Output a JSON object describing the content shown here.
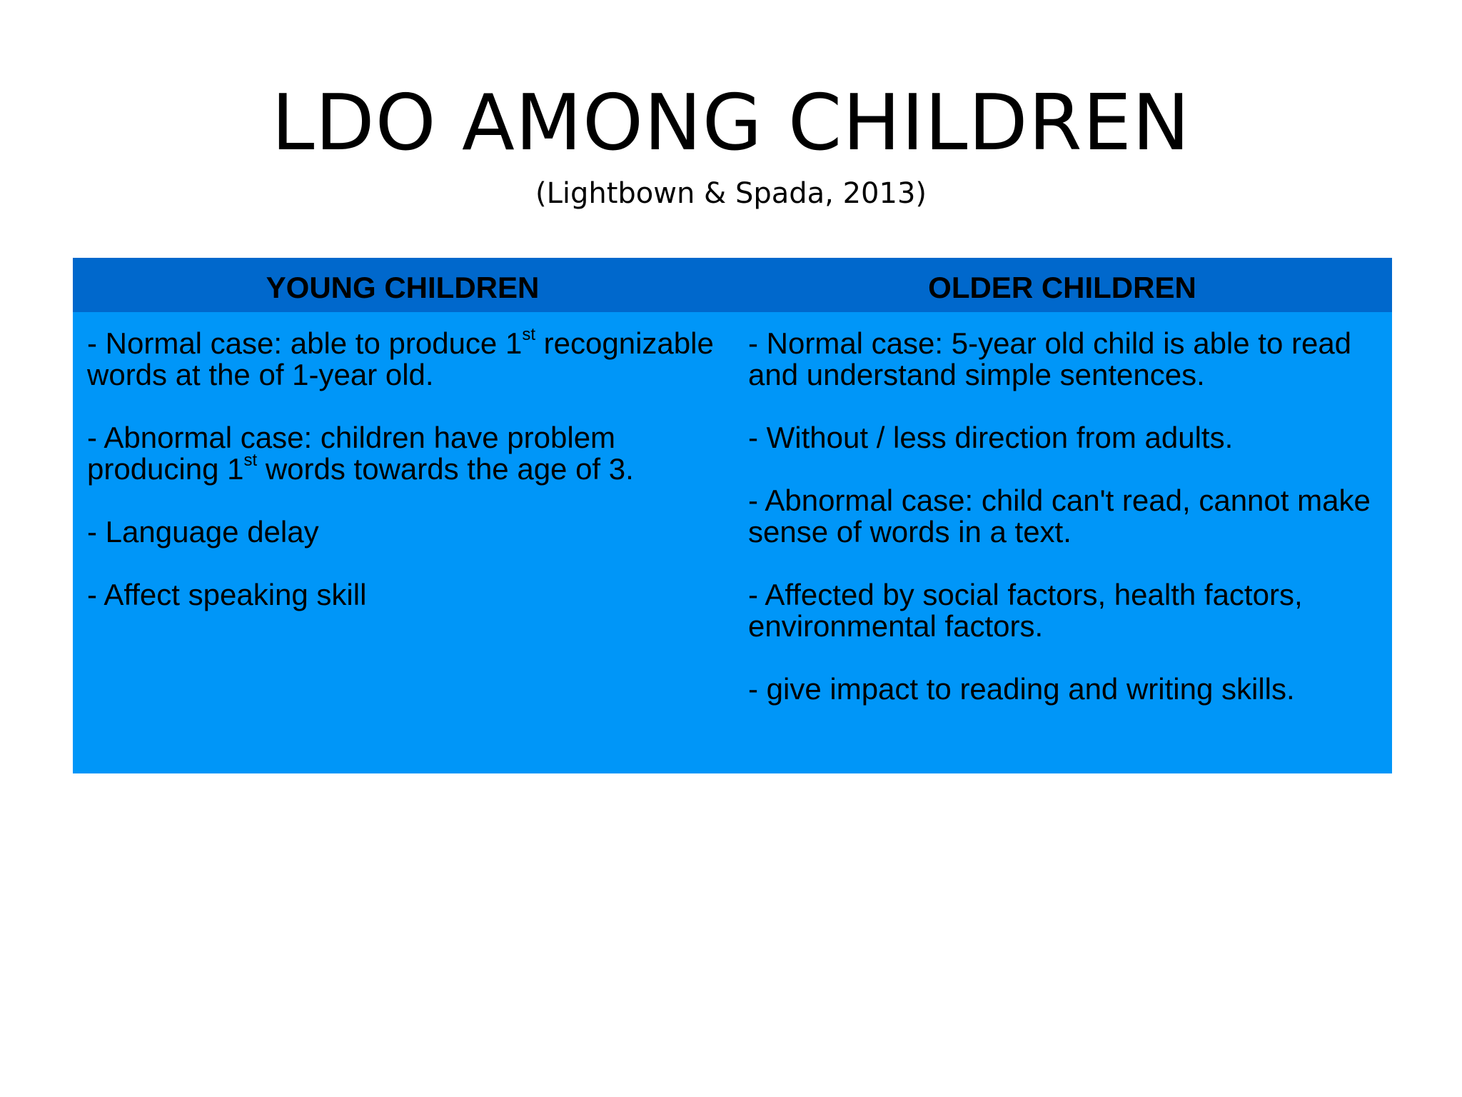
{
  "slide": {
    "title": "LDO AMONG CHILDREN",
    "subtitle": "(Lightbown & Spada, 2013)"
  },
  "table": {
    "headers": [
      "YOUNG CHILDREN",
      "OLDER CHILDREN"
    ],
    "young": [
      {
        "before": "- Normal case: able to produce 1",
        "sup": "st",
        "after": " recognizable words at the of 1-year old."
      },
      {
        "before": "- Abnormal case: children have problem producing 1",
        "sup": "st",
        "after": " words towards the age of 3."
      },
      {
        "before": "- Language delay",
        "sup": "",
        "after": ""
      },
      {
        "before": "- Affect speaking skill",
        "sup": "",
        "after": ""
      }
    ],
    "older": [
      "- Normal case: 5-year old child is able to read and understand simple sentences.",
      "- Without / less direction from adults.",
      "- Abnormal case: child can't read, cannot make sense of words in a text.",
      "- Affected by social factors, health factors, environmental factors.",
      "- give impact to reading and writing skills."
    ]
  },
  "colors": {
    "header_bg": "#0068cc",
    "body_bg": "#0096f8"
  }
}
